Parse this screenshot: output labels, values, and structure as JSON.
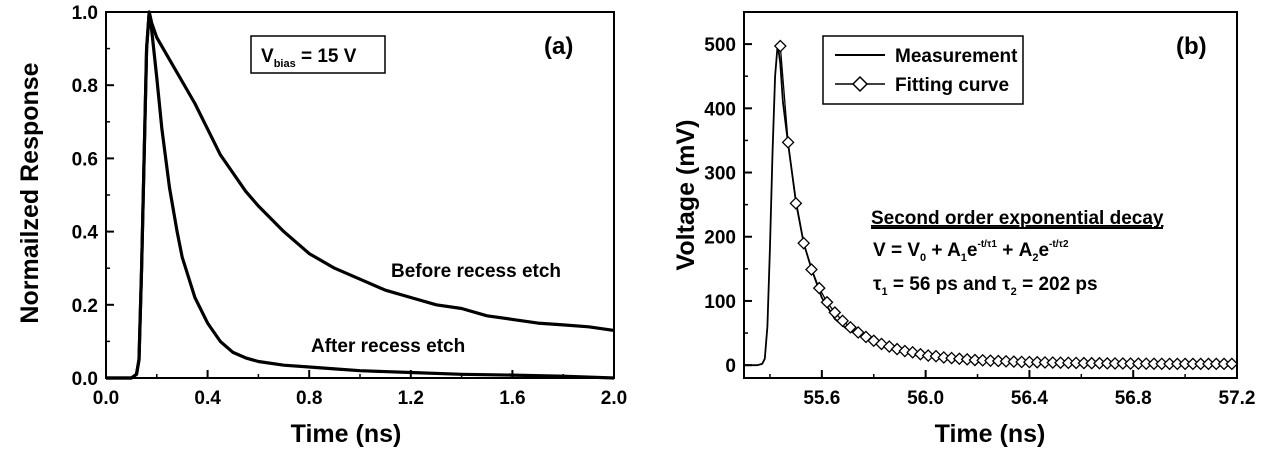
{
  "chart_data": [
    {
      "type": "line",
      "panel_label": "(a)",
      "xlabel": "Time (ns)",
      "ylabel": "Normailzed Response",
      "xlim": [
        0.0,
        2.0
      ],
      "ylim": [
        0.0,
        1.0
      ],
      "xticks": [
        "0.0",
        "0.4",
        "0.8",
        "1.2",
        "1.6",
        "2.0"
      ],
      "yticks": [
        "0.0",
        "0.2",
        "0.4",
        "0.6",
        "0.8",
        "1.0"
      ],
      "annotation": {
        "prefix": "V",
        "sub": "bias",
        "suffix": " = 15 V"
      },
      "series": [
        {
          "name": "Before recess etch",
          "x": [
            0.0,
            0.05,
            0.1,
            0.12,
            0.13,
            0.14,
            0.15,
            0.16,
            0.17,
            0.18,
            0.2,
            0.25,
            0.3,
            0.35,
            0.4,
            0.45,
            0.5,
            0.55,
            0.6,
            0.7,
            0.8,
            0.9,
            1.0,
            1.1,
            1.2,
            1.3,
            1.4,
            1.5,
            1.6,
            1.7,
            1.8,
            1.9,
            2.0
          ],
          "y": [
            0.0,
            0.0,
            0.0,
            0.01,
            0.05,
            0.3,
            0.6,
            0.9,
            1.0,
            0.97,
            0.93,
            0.87,
            0.81,
            0.75,
            0.68,
            0.61,
            0.56,
            0.51,
            0.47,
            0.4,
            0.34,
            0.3,
            0.27,
            0.24,
            0.22,
            0.2,
            0.19,
            0.17,
            0.16,
            0.15,
            0.145,
            0.14,
            0.13
          ]
        },
        {
          "name": "After recess etch",
          "x": [
            0.0,
            0.05,
            0.1,
            0.12,
            0.13,
            0.14,
            0.15,
            0.16,
            0.17,
            0.18,
            0.2,
            0.22,
            0.25,
            0.28,
            0.3,
            0.35,
            0.4,
            0.45,
            0.5,
            0.55,
            0.6,
            0.7,
            0.8,
            0.9,
            1.0,
            1.2,
            1.4,
            1.6,
            1.8,
            2.0
          ],
          "y": [
            0.0,
            0.0,
            0.0,
            0.01,
            0.05,
            0.3,
            0.6,
            0.9,
            1.0,
            0.95,
            0.82,
            0.68,
            0.52,
            0.4,
            0.33,
            0.22,
            0.15,
            0.1,
            0.07,
            0.055,
            0.045,
            0.035,
            0.03,
            0.025,
            0.02,
            0.015,
            0.01,
            0.008,
            0.005,
            0.0
          ]
        }
      ]
    },
    {
      "type": "line",
      "panel_label": "(b)",
      "xlabel": "Time (ns)",
      "ylabel": "Voltage (mV)",
      "xlim": [
        55.3,
        57.2
      ],
      "ylim": [
        -20,
        550
      ],
      "xticks": [
        "55.6",
        "56.0",
        "56.4",
        "56.8",
        "57.2"
      ],
      "xtick_values": [
        55.6,
        56.0,
        56.4,
        56.8,
        57.2
      ],
      "yticks": [
        "0",
        "100",
        "200",
        "300",
        "400",
        "500"
      ],
      "ytick_values": [
        0,
        100,
        200,
        300,
        400,
        500
      ],
      "legend": {
        "placement": "top-center",
        "entries": [
          "Measurement",
          "Fitting curve"
        ]
      },
      "series": [
        {
          "name": "Measurement",
          "x": [
            55.3,
            55.35,
            55.37,
            55.38,
            55.39,
            55.4,
            55.41,
            55.42,
            55.43,
            55.44,
            55.45,
            55.47,
            55.5,
            55.53,
            55.56,
            55.6,
            55.65,
            55.7,
            55.8,
            55.9,
            56.0,
            56.2,
            56.4,
            56.6,
            56.8,
            57.0,
            57.2
          ],
          "y": [
            0,
            0,
            2,
            10,
            60,
            180,
            330,
            450,
            500,
            470,
            410,
            345,
            255,
            190,
            150,
            105,
            72,
            55,
            35,
            24,
            17,
            10,
            6,
            4,
            3,
            2,
            2
          ]
        },
        {
          "name": "Fitting curve",
          "x": [
            55.44,
            55.47,
            55.5,
            55.53,
            55.56,
            55.59,
            55.62,
            55.65,
            55.68,
            55.71,
            55.74,
            55.77,
            55.8,
            55.83,
            55.86,
            55.89,
            55.92,
            55.95,
            55.98,
            56.01,
            56.04,
            56.07,
            56.1,
            56.13,
            56.16,
            56.19,
            56.22,
            56.25,
            56.28,
            56.31,
            56.34,
            56.37,
            56.4,
            56.43,
            56.46,
            56.49,
            56.52,
            56.55,
            56.58,
            56.61,
            56.64,
            56.67,
            56.7,
            56.73,
            56.76,
            56.79,
            56.82,
            56.85,
            56.88,
            56.91,
            56.94,
            56.97,
            57.0,
            57.03,
            57.06,
            57.09,
            57.12,
            57.15,
            57.18
          ],
          "y": [
            497,
            347,
            252,
            190,
            149,
            120,
            98,
            82,
            69,
            59,
            51,
            44,
            38,
            33,
            29,
            25,
            22,
            20,
            17,
            15,
            14,
            12,
            11,
            10,
            9,
            8,
            7.5,
            7,
            6.5,
            6,
            5.5,
            5,
            4.8,
            4.5,
            4.2,
            4,
            3.8,
            3.6,
            3.4,
            3.2,
            3,
            3,
            2.8,
            2.7,
            2.6,
            2.5,
            2.4,
            2.3,
            2.2,
            2.1,
            2,
            2,
            2,
            2,
            2,
            2,
            2,
            2,
            2
          ]
        }
      ],
      "annotations": {
        "heading": "Second order exponential decay",
        "equation": "V = V0 + A1e^(-t/τ1) + A2e^(-t/τ2)",
        "taus": "τ1 = 56 ps and τ2 = 202 ps"
      }
    }
  ]
}
